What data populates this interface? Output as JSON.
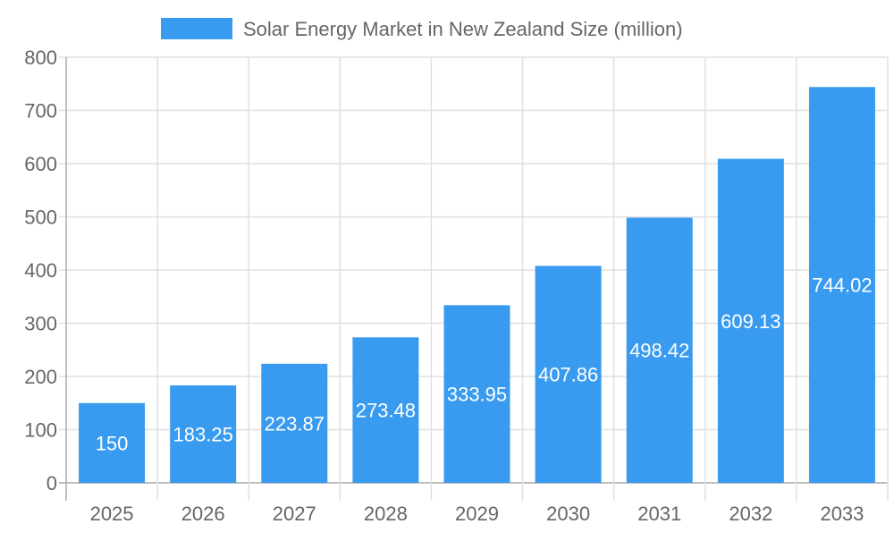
{
  "chart_data": {
    "type": "bar",
    "title": "",
    "legend": {
      "position": "top",
      "entries": [
        "Solar Energy Market in New Zealand Size (million)"
      ]
    },
    "categories": [
      "2025",
      "2026",
      "2027",
      "2028",
      "2029",
      "2030",
      "2031",
      "2032",
      "2033"
    ],
    "series": [
      {
        "name": "Solar Energy Market in New Zealand Size (million)",
        "values": [
          150,
          183.25,
          223.87,
          273.48,
          333.95,
          407.86,
          498.42,
          609.13,
          744.02
        ],
        "color": "#399bf0"
      }
    ],
    "data_labels": [
      "150",
      "183.25",
      "223.87",
      "273.48",
      "333.95",
      "407.86",
      "498.42",
      "609.13",
      "744.02"
    ],
    "xlabel": "",
    "ylabel": "",
    "ylim": [
      0,
      800
    ],
    "yticks": [
      "0",
      "100",
      "200",
      "300",
      "400",
      "500",
      "600",
      "700",
      "800"
    ],
    "grid": true
  }
}
